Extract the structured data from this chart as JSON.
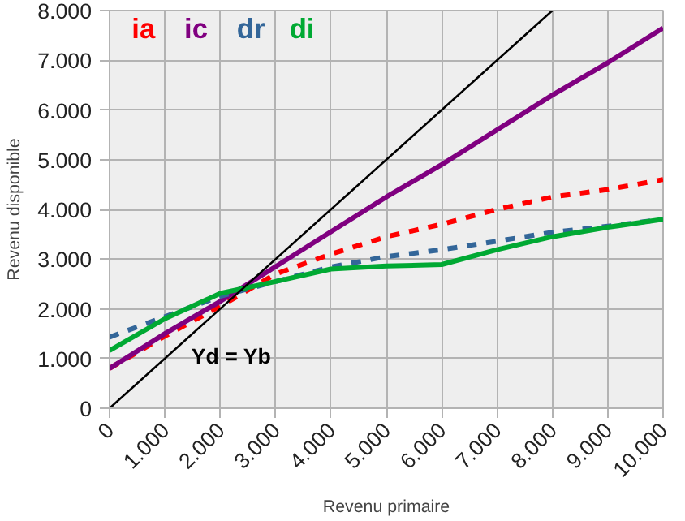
{
  "chart_data": {
    "type": "line",
    "xlabel": "Revenu primaire",
    "ylabel": "Revenu disponible",
    "xlim": [
      0,
      10000
    ],
    "ylim": [
      0,
      8000
    ],
    "xticks": [
      {
        "value": 0,
        "label": "0"
      },
      {
        "value": 1000,
        "label": "1.000"
      },
      {
        "value": 2000,
        "label": "2.000"
      },
      {
        "value": 3000,
        "label": "3.000"
      },
      {
        "value": 4000,
        "label": "4.000"
      },
      {
        "value": 5000,
        "label": "5.000"
      },
      {
        "value": 6000,
        "label": "6.000"
      },
      {
        "value": 7000,
        "label": "7.000"
      },
      {
        "value": 8000,
        "label": "8.000"
      },
      {
        "value": 9000,
        "label": "9.000"
      },
      {
        "value": 10000,
        "label": "10.000"
      }
    ],
    "yticks": [
      {
        "value": 0,
        "label": "0"
      },
      {
        "value": 1000,
        "label": "1.000"
      },
      {
        "value": 2000,
        "label": "2.000"
      },
      {
        "value": 3000,
        "label": "3.000"
      },
      {
        "value": 4000,
        "label": "4.000"
      },
      {
        "value": 5000,
        "label": "5.000"
      },
      {
        "value": 6000,
        "label": "6.000"
      },
      {
        "value": 7000,
        "label": "7.000"
      },
      {
        "value": 8000,
        "label": "8.000"
      }
    ],
    "grid": true,
    "marker": "none",
    "x": [
      0,
      1000,
      2000,
      3000,
      4000,
      5000,
      6000,
      7000,
      8000,
      9000,
      10000
    ],
    "series": [
      {
        "name": "ia",
        "color": "#ff0000",
        "line_style": "dashed",
        "values": [
          800,
          1450,
          2050,
          2700,
          3100,
          3450,
          3700,
          4000,
          4250,
          4400,
          4600
        ]
      },
      {
        "name": "ic",
        "color": "#800080",
        "line_style": "solid",
        "values": [
          800,
          1500,
          2150,
          2850,
          3550,
          4250,
          4900,
          5600,
          6300,
          6950,
          7650
        ]
      },
      {
        "name": "dr",
        "color": "#336699",
        "line_style": "dashed",
        "values": [
          1430,
          1840,
          2250,
          2550,
          2840,
          3050,
          3190,
          3360,
          3540,
          3660,
          3800
        ]
      },
      {
        "name": "di",
        "color": "#00a933",
        "line_style": "solid",
        "values": [
          1160,
          1800,
          2310,
          2550,
          2800,
          2860,
          2890,
          3190,
          3450,
          3640,
          3800
        ]
      },
      {
        "color": "#000000",
        "line_style": "solid",
        "x": [
          0,
          8000
        ],
        "values": [
          0,
          8000
        ]
      }
    ],
    "annotations": [
      "Yd = Yb"
    ]
  }
}
